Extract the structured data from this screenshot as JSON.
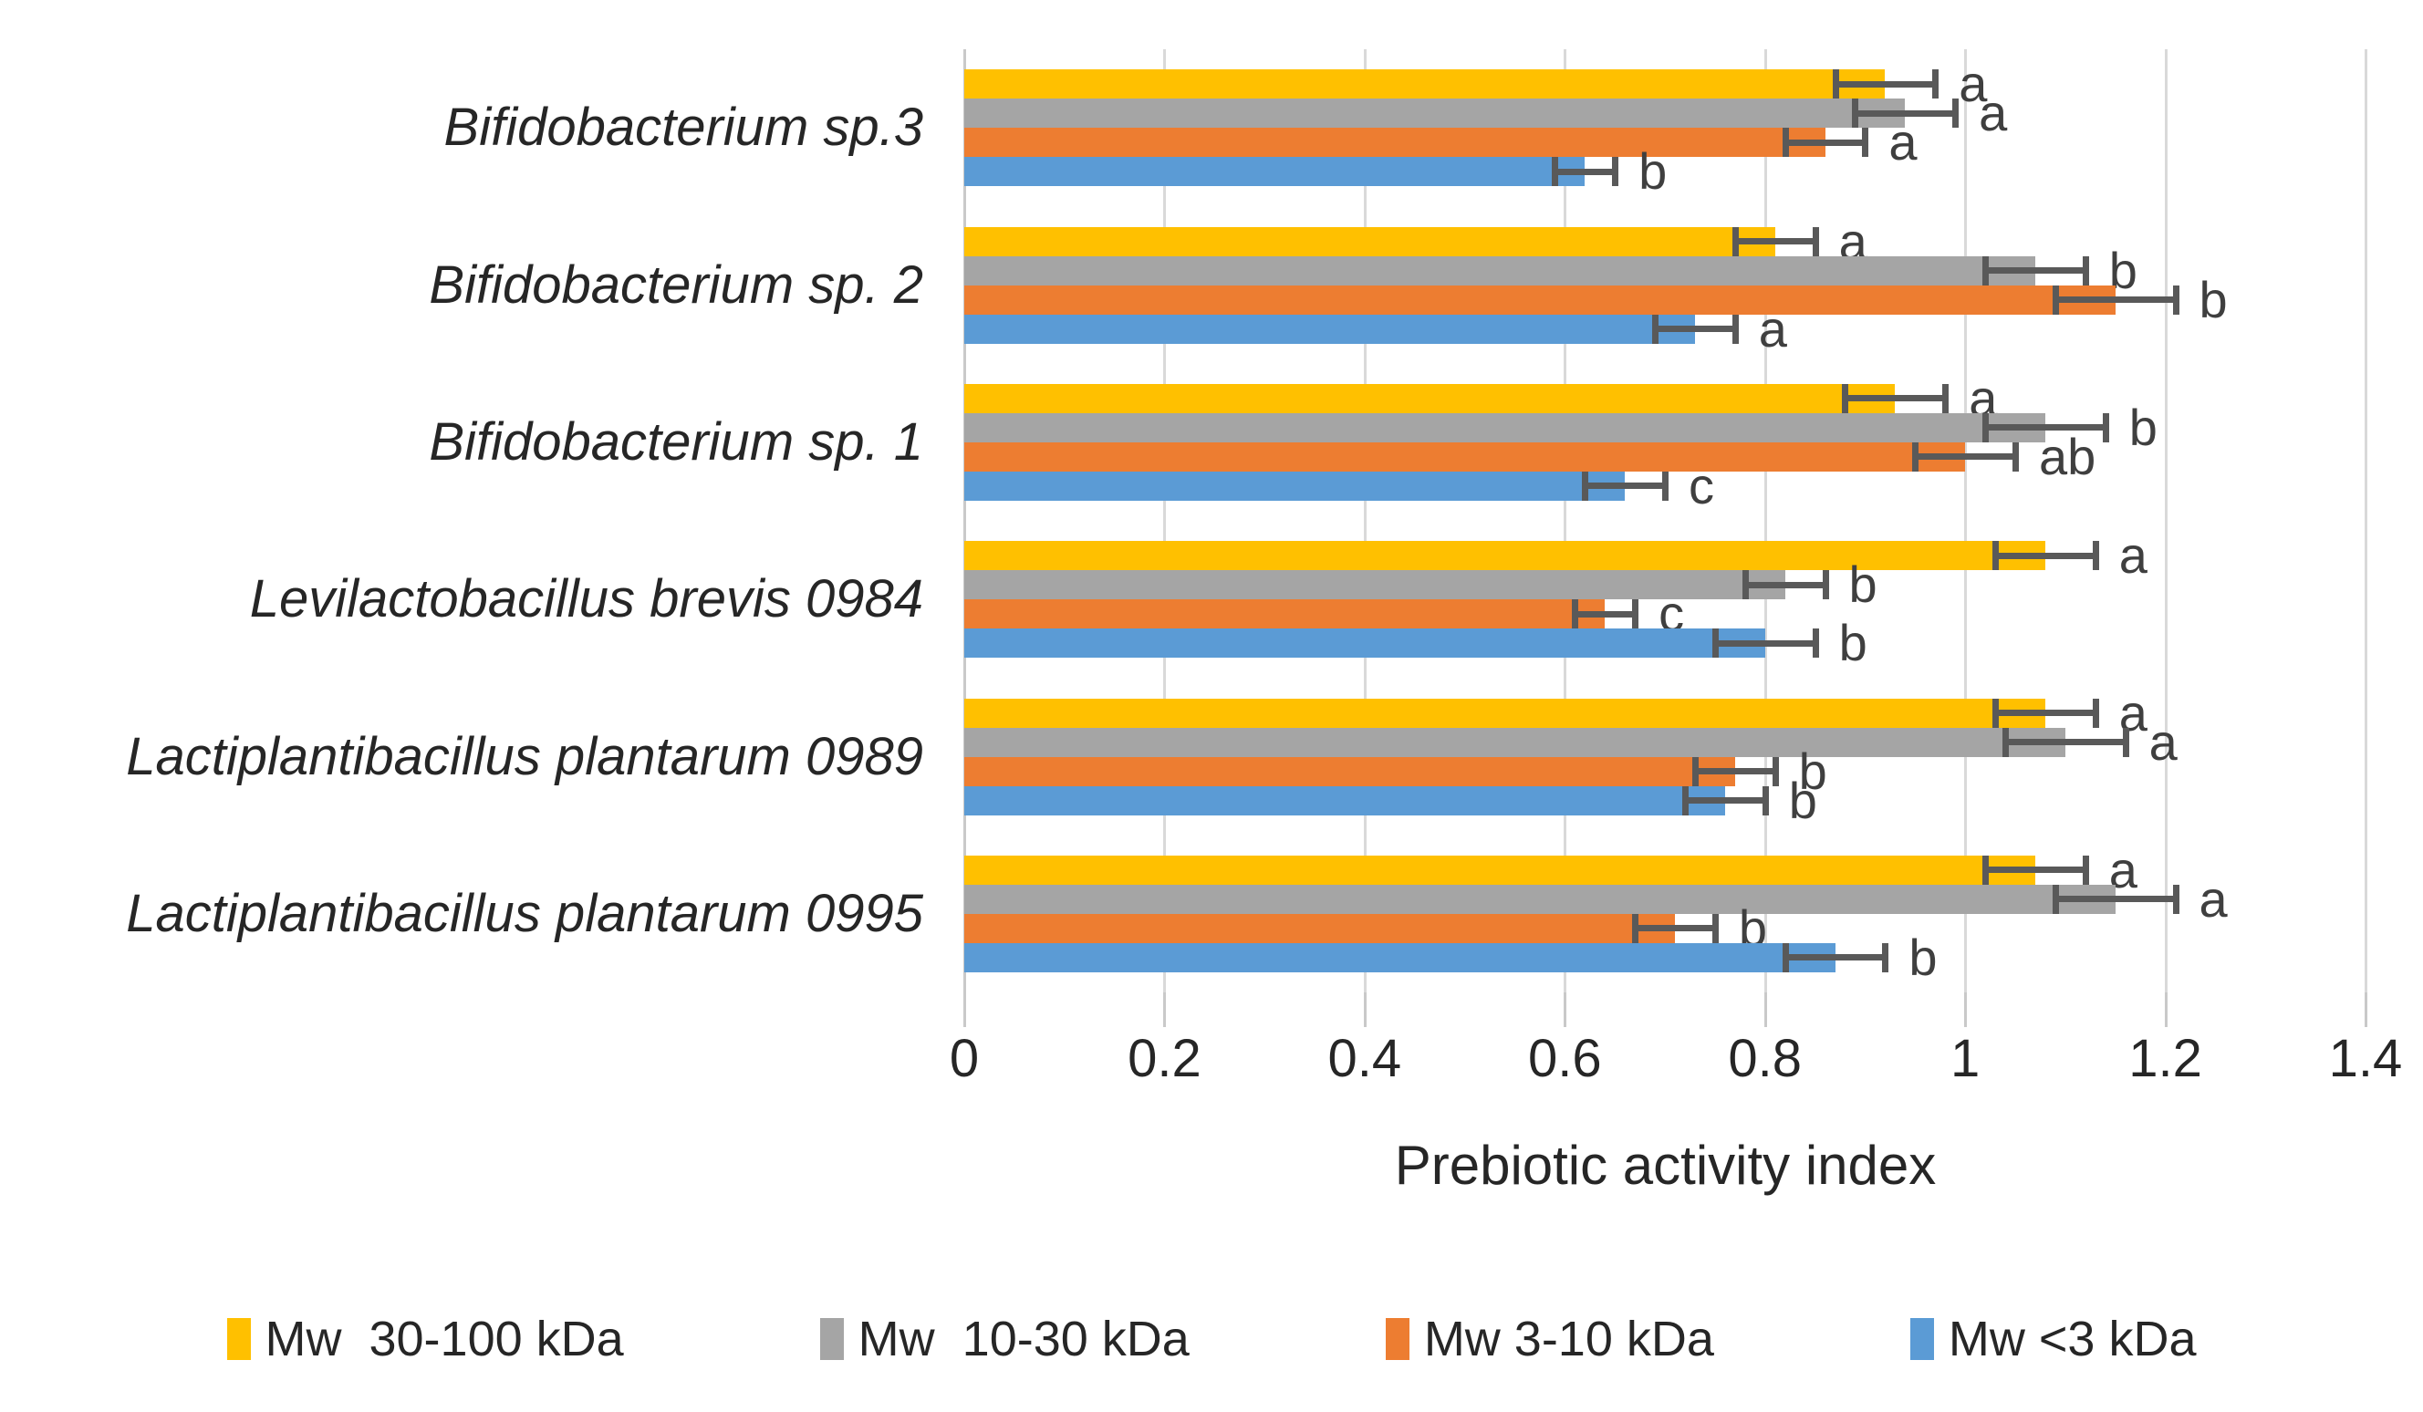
{
  "chart_data": {
    "type": "bar",
    "orientation": "horizontal",
    "title": "",
    "xlabel": "Prebiotic activity index",
    "xlim": [
      0,
      1.4
    ],
    "x_ticks": [
      "0",
      "0.2",
      "0.4",
      "0.6",
      "0.8",
      "1",
      "1.2",
      "1.4"
    ],
    "x_tick_values": [
      0,
      0.2,
      0.4,
      0.6,
      0.8,
      1.0,
      1.2,
      1.4
    ],
    "grid": true,
    "legend_position": "bottom",
    "categories": [
      "Bifidobacterium sp.3",
      "Bifidobacterium sp. 2",
      "Bifidobacterium sp. 1",
      "Levilactobacillus brevis 0984",
      "Lactiplantibacillus plantarum 0989",
      "Lactiplantibacillus plantarum 0995"
    ],
    "series": [
      {
        "name": "Mw  30-100 kDa",
        "color": "#FFC000",
        "values": [
          0.92,
          0.81,
          0.93,
          1.08,
          1.08,
          1.07
        ],
        "errors": [
          0.05,
          0.04,
          0.05,
          0.05,
          0.05,
          0.05
        ],
        "letters": [
          "a",
          "a",
          "a",
          "a",
          "a",
          "a"
        ]
      },
      {
        "name": "Mw  10-30 kDa",
        "color": "#A5A5A5",
        "values": [
          0.94,
          1.07,
          1.08,
          0.82,
          1.1,
          1.15
        ],
        "errors": [
          0.05,
          0.05,
          0.06,
          0.04,
          0.06,
          0.06
        ],
        "letters": [
          "a",
          "b",
          "b",
          "b",
          "a",
          "a"
        ]
      },
      {
        "name": "Mw 3-10 kDa",
        "color": "#ED7D31",
        "values": [
          0.86,
          1.15,
          1.0,
          0.64,
          0.77,
          0.71
        ],
        "errors": [
          0.04,
          0.06,
          0.05,
          0.03,
          0.04,
          0.04
        ],
        "letters": [
          "a",
          "b",
          "ab",
          "c",
          "b",
          "b"
        ]
      },
      {
        "name": "Mw <3 kDa",
        "color": "#5B9BD5",
        "values": [
          0.62,
          0.73,
          0.66,
          0.8,
          0.76,
          0.87
        ],
        "errors": [
          0.03,
          0.04,
          0.04,
          0.05,
          0.04,
          0.05
        ],
        "letters": [
          "b",
          "a",
          "c",
          "b",
          "b",
          "b"
        ]
      }
    ],
    "style": {
      "error_bar_color": "#595959",
      "gridline_color": "#D9D9D9",
      "axis_line_color": "#C9C9C9",
      "text_color": "#262626",
      "letter_color": "#3F3F3F"
    }
  }
}
